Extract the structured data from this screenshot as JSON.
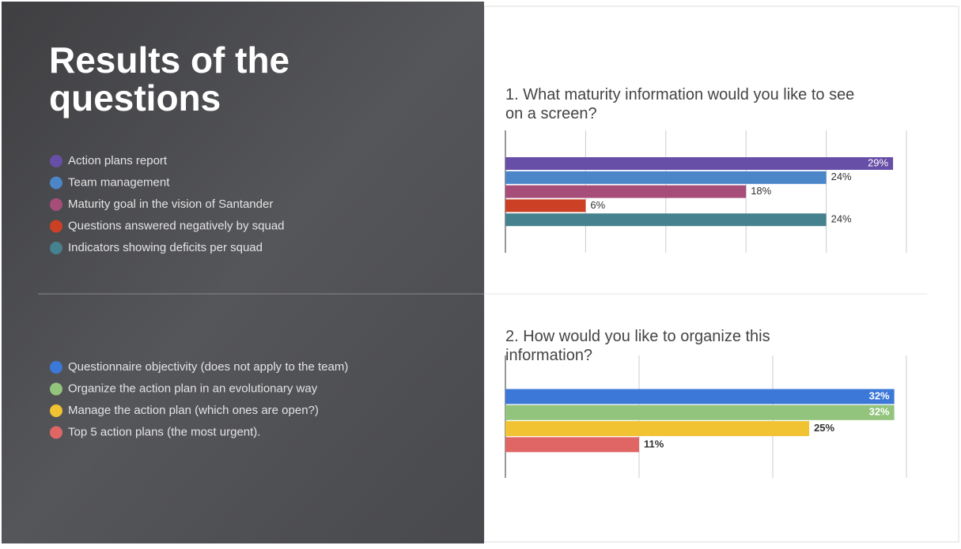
{
  "title": "Results of the questions",
  "chart_data": [
    {
      "type": "hbar",
      "title": "1. What maturity information would you like to see on a screen?",
      "categories": [
        "Action plans report",
        "Team management",
        "Maturity goal in the vision of Santander",
        "Questions answered negatively by squad",
        "Indicators showing deficits per squad"
      ],
      "values": [
        29,
        24,
        18,
        6,
        24
      ],
      "value_labels": [
        "29%",
        "24%",
        "18%",
        "6%",
        "24%"
      ],
      "colors": [
        "#674ea7",
        "#4a86c8",
        "#a64d79",
        "#cc4125",
        "#45818e"
      ],
      "xlim": [
        0,
        30
      ],
      "xticks": [
        0,
        6,
        12,
        18,
        24,
        30
      ],
      "grid": true
    },
    {
      "type": "hbar",
      "title": "2. How would you like to organize this information?",
      "categories": [
        "Questionnaire objectivity (does not apply to the team)",
        "Organize the action plan in an evolutionary way",
        "Manage the action plan (which ones are open?)",
        "Top 5 action plans (the most urgent)."
      ],
      "values": [
        32,
        32,
        25,
        11
      ],
      "value_labels": [
        "32%",
        "32%",
        "25%",
        "11%"
      ],
      "colors": [
        "#3c78d8",
        "#93c47d",
        "#f1c232",
        "#e06666"
      ],
      "xlim": [
        0,
        33
      ],
      "xticks": [
        0,
        11,
        22,
        33
      ],
      "grid": true
    }
  ]
}
